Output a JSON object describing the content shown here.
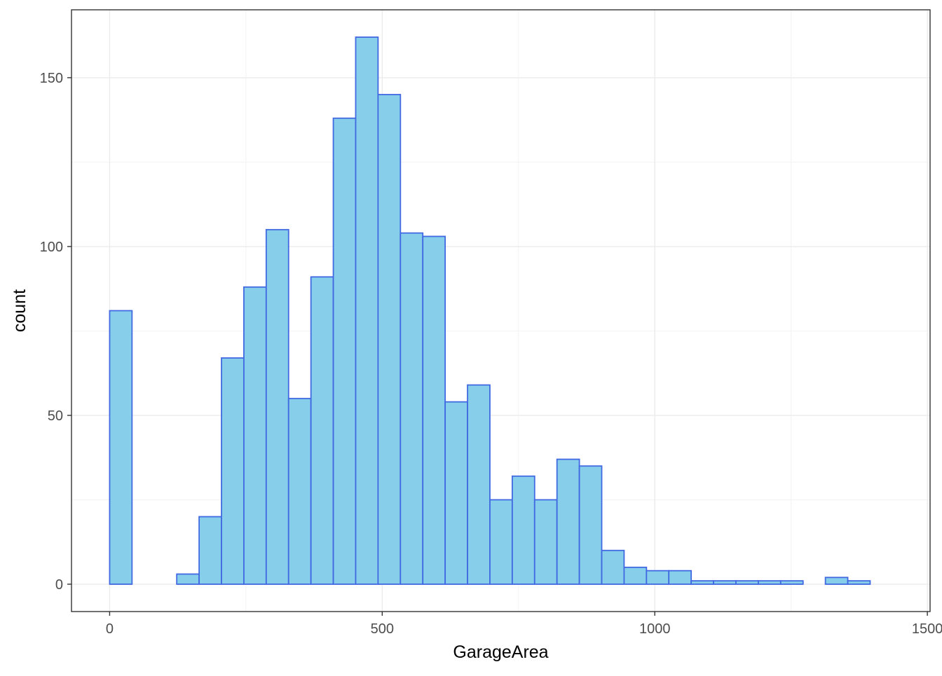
{
  "chart_data": {
    "type": "bar",
    "subtype": "histogram",
    "title": "",
    "xlabel": "GarageArea",
    "ylabel": "count",
    "xlim": [
      -70,
      1505
    ],
    "ylim": [
      -8.1,
      170.1
    ],
    "x_ticks": [
      0,
      500,
      1000,
      1500
    ],
    "x_tick_labels": [
      "0",
      "500",
      "1000",
      "1500"
    ],
    "y_ticks": [
      0,
      50,
      100,
      150
    ],
    "y_tick_labels": [
      "0",
      "50",
      "100",
      "150"
    ],
    "grid": true,
    "bin_width": 41.03,
    "bin_start": 0,
    "counts": [
      81,
      0,
      0,
      3,
      20,
      67,
      88,
      105,
      55,
      91,
      138,
      162,
      145,
      104,
      103,
      54,
      59,
      25,
      32,
      25,
      37,
      35,
      10,
      5,
      4,
      4,
      1,
      1,
      1,
      1,
      1,
      0,
      2,
      1
    ],
    "fill_color": "#87CEEB",
    "outline_color": "#4169E1"
  }
}
